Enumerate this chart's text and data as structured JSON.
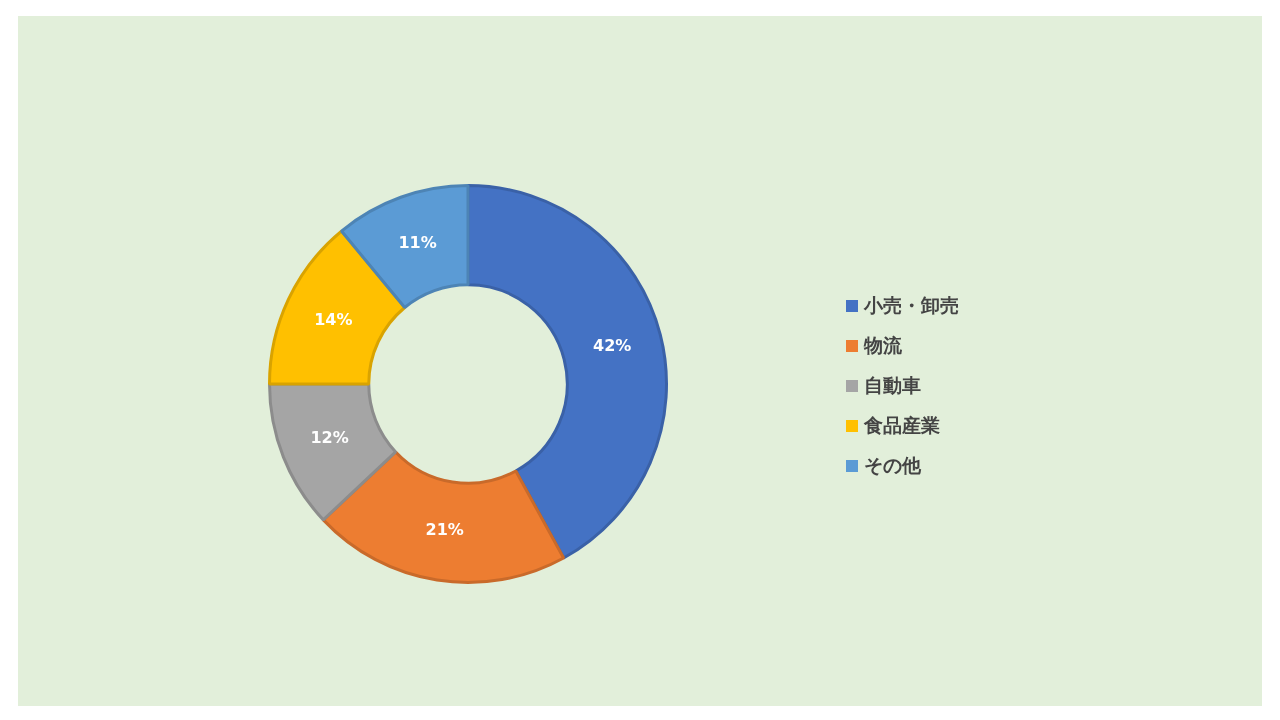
{
  "chart_data": {
    "type": "donut",
    "categories": [
      "小売・卸売",
      "物流",
      "自動車",
      "食品産業",
      "その他"
    ],
    "values": [
      42,
      21,
      12,
      14,
      11
    ],
    "colors": [
      "#4472c4",
      "#ed7d31",
      "#a5a5a5",
      "#ffc000",
      "#5b9bd5"
    ],
    "value_labels": [
      "42%",
      "21%",
      "12%",
      "14%",
      "11%"
    ],
    "legend": "right"
  }
}
